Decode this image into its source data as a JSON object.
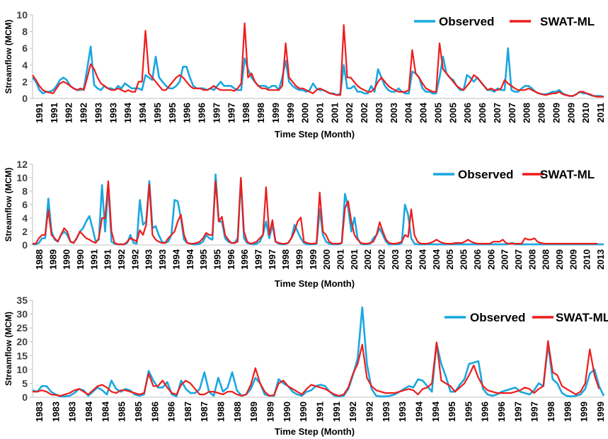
{
  "chart_data": [
    {
      "type": "line",
      "xlabel": "Time Step (Month)",
      "ylabel": "Streamflow (MCM)",
      "ylim": [
        0,
        10
      ],
      "yticks": [
        0,
        2,
        4,
        6,
        8,
        10
      ],
      "grid": false,
      "legend_position": "top-right",
      "x_tick_labels": [
        "1991",
        "1991",
        "1992",
        "1992",
        "1993",
        "1993",
        "1994",
        "1994",
        "1995",
        "1995",
        "1996",
        "1996",
        "1997",
        "1997",
        "1998",
        "1998",
        "1999",
        "1999",
        "2000",
        "2001",
        "2001",
        "2002",
        "2002",
        "2003",
        "2003",
        "2004",
        "2004",
        "2005",
        "2005",
        "2006",
        "2006",
        "2007",
        "2007",
        "2008",
        "2008",
        "2009",
        "2009",
        "2010",
        "2011"
      ],
      "series": [
        {
          "name": "Observed",
          "color": "#1aa7e0",
          "values": [
            2.5,
            2.0,
            1.0,
            0.6,
            0.8,
            0.8,
            1.0,
            1.5,
            2.2,
            2.5,
            2.2,
            1.5,
            1.2,
            1.0,
            1.0,
            1.2,
            3.6,
            6.2,
            1.6,
            1.2,
            1.0,
            1.5,
            1.2,
            1.2,
            1.0,
            1.5,
            1.2,
            1.8,
            1.5,
            1.2,
            1.2,
            1.2,
            1.0,
            2.8,
            2.5,
            2.2,
            5.0,
            2.5,
            2.0,
            1.5,
            1.2,
            1.2,
            1.5,
            2.0,
            3.8,
            3.8,
            2.5,
            1.5,
            1.2,
            1.2,
            1.2,
            1.0,
            1.2,
            1.0,
            1.5,
            2.0,
            1.5,
            1.5,
            1.5,
            1.2,
            1.0,
            1.0,
            4.8,
            3.5,
            2.5,
            2.0,
            1.5,
            1.5,
            1.5,
            1.2,
            1.5,
            1.5,
            1.0,
            2.5,
            4.5,
            2.0,
            1.5,
            1.2,
            1.0,
            1.0,
            0.8,
            1.0,
            1.8,
            1.2,
            1.0,
            1.0,
            0.8,
            0.6,
            0.6,
            0.4,
            0.6,
            4.0,
            1.2,
            1.2,
            1.5,
            0.8,
            0.8,
            0.6,
            0.6,
            1.5,
            0.8,
            3.5,
            2.5,
            1.5,
            1.0,
            0.8,
            0.8,
            1.2,
            0.8,
            0.6,
            0.6,
            3.2,
            3.0,
            2.5,
            1.2,
            0.8,
            0.8,
            0.6,
            0.6,
            2.5,
            5.0,
            3.0,
            2.5,
            2.2,
            1.5,
            1.0,
            1.0,
            2.8,
            2.5,
            2.0,
            2.5,
            2.0,
            1.5,
            1.0,
            1.0,
            0.8,
            1.2,
            1.0,
            1.0,
            6.0,
            1.0,
            0.8,
            0.8,
            1.2,
            1.5,
            1.5,
            1.2,
            0.8,
            0.6,
            0.5,
            0.5,
            0.6,
            0.8,
            0.8,
            1.0,
            0.6,
            0.4,
            0.3,
            0.3,
            0.5,
            0.8,
            0.6,
            0.6,
            0.4,
            0.3,
            0.3,
            0.3,
            0.2
          ]
        },
        {
          "name": "SWAT-ML",
          "color": "#ee1c1c",
          "values": [
            2.8,
            2.2,
            1.5,
            1.0,
            0.8,
            0.7,
            0.6,
            1.2,
            1.8,
            2.0,
            1.8,
            1.5,
            1.2,
            1.0,
            1.2,
            1.0,
            2.5,
            4.1,
            3.5,
            2.5,
            1.8,
            1.5,
            1.2,
            1.0,
            1.0,
            1.2,
            1.0,
            0.8,
            1.0,
            0.8,
            0.8,
            2.0,
            2.0,
            8.1,
            3.0,
            2.5,
            2.0,
            1.5,
            1.0,
            1.0,
            1.5,
            2.0,
            2.5,
            2.8,
            2.5,
            2.0,
            1.5,
            1.2,
            1.2,
            1.2,
            1.0,
            1.0,
            1.2,
            1.5,
            1.2,
            1.0,
            1.0,
            1.0,
            1.0,
            0.9,
            1.2,
            1.8,
            9.0,
            2.5,
            3.0,
            2.0,
            1.5,
            1.2,
            1.2,
            1.0,
            1.0,
            1.0,
            1.0,
            1.5,
            6.6,
            2.5,
            2.0,
            1.5,
            1.2,
            1.2,
            1.0,
            0.8,
            0.6,
            1.0,
            1.2,
            1.0,
            0.8,
            0.6,
            0.5,
            0.4,
            0.4,
            8.8,
            2.5,
            2.5,
            2.0,
            1.5,
            1.2,
            1.0,
            0.8,
            0.8,
            1.2,
            2.0,
            2.5,
            2.0,
            1.5,
            1.2,
            1.0,
            0.8,
            0.8,
            0.8,
            1.0,
            5.8,
            3.0,
            2.5,
            1.8,
            1.2,
            1.0,
            0.8,
            0.8,
            6.6,
            3.5,
            3.0,
            2.5,
            2.0,
            1.5,
            1.2,
            1.0,
            1.5,
            2.0,
            2.8,
            2.5,
            2.0,
            1.5,
            1.0,
            1.2,
            1.0,
            1.0,
            1.2,
            2.2,
            1.8,
            1.5,
            1.2,
            1.0,
            1.0,
            1.0,
            1.2,
            1.0,
            0.8,
            0.6,
            0.5,
            0.4,
            0.5,
            0.6,
            0.6,
            0.8,
            0.5,
            0.4,
            0.3,
            0.3,
            0.5,
            0.8,
            0.8,
            0.6,
            0.5,
            0.3,
            0.2,
            0.2,
            0.2
          ]
        }
      ]
    },
    {
      "type": "line",
      "xlabel": "Time Step (Month)",
      "ylabel": "Streamflow (MCM)",
      "ylim": [
        0,
        12
      ],
      "yticks": [
        0,
        2,
        4,
        6,
        8,
        10,
        12
      ],
      "grid": false,
      "legend_position": "top-right",
      "x_tick_labels": [
        "1988",
        "1989",
        "1990",
        "1990",
        "1991",
        "1991",
        "1992",
        "1992",
        "1993",
        "1993",
        "1994",
        "1994",
        "1995",
        "1995",
        "1996",
        "1996",
        "1997",
        "1997",
        "1998",
        "1999",
        "1999",
        "2000",
        "2001",
        "2001",
        "2002",
        "2002",
        "2003",
        "2003",
        "2004",
        "2004",
        "2005",
        "2005",
        "2006",
        "2006",
        "2007",
        "2007",
        "2008",
        "2008",
        "2009",
        "2009",
        "2010",
        "2013"
      ],
      "series": [
        {
          "name": "Observed",
          "color": "#1aa7e0",
          "values": [
            0.1,
            0.1,
            0.3,
            1.0,
            1.0,
            6.9,
            2.0,
            0.8,
            0.5,
            1.5,
            2.0,
            1.5,
            0.5,
            0.3,
            1.0,
            2.0,
            2.5,
            3.5,
            4.3,
            2.5,
            0.5,
            0.8,
            8.9,
            2.0,
            8.9,
            0.5,
            0.2,
            0.1,
            0.1,
            0.1,
            0.3,
            1.5,
            0.3,
            0.2,
            6.7,
            3.0,
            3.5,
            9.5,
            2.5,
            2.8,
            1.5,
            0.5,
            0.3,
            0.5,
            1.5,
            6.7,
            6.5,
            4.0,
            0.8,
            0.3,
            0.2,
            0.1,
            0.1,
            0.2,
            0.5,
            1.5,
            1.0,
            0.8,
            10.5,
            3.5,
            3.5,
            1.0,
            0.5,
            0.3,
            0.3,
            1.0,
            9.8,
            1.0,
            0.3,
            0.2,
            0.1,
            0.2,
            0.5,
            1.5,
            3.5,
            1.0,
            3.0,
            0.5,
            0.2,
            0.1,
            0.1,
            0.3,
            1.0,
            3.0,
            2.0,
            1.0,
            0.3,
            0.1,
            0.1,
            0.1,
            0.2,
            5.3,
            1.5,
            0.5,
            0.2,
            0.1,
            0.1,
            0.1,
            0.3,
            7.6,
            5.5,
            2.0,
            4.1,
            1.0,
            0.2,
            0.1,
            0.1,
            0.2,
            1.0,
            1.5,
            2.5,
            1.5,
            0.5,
            0.1,
            0.1,
            0.1,
            0.1,
            0.3,
            6.0,
            4.5,
            1.0,
            0.2,
            0.1,
            0.1,
            0.1,
            0.1,
            0.1,
            0.1,
            0.1,
            0.1,
            0.1,
            0.1,
            0.1,
            0.1,
            0.1,
            0.1,
            0.1,
            0.1,
            0.1,
            0.1,
            0.1,
            0.1,
            0.1,
            0.1,
            0.1,
            0.1,
            0.1,
            0.1,
            0.1,
            0.1,
            0.1,
            0.2,
            0.3,
            0.1,
            0.1,
            0.1,
            0.1,
            0.1,
            0.1,
            0.1,
            0.1,
            0.1,
            0.1,
            0.1,
            0.1,
            0.1,
            0.1,
            0.1,
            0.1,
            0.1,
            0.1,
            0.1,
            0.1,
            0.1,
            0.1,
            0.1,
            0.1,
            0.1,
            0.1,
            0.1,
            0.1,
            0.1
          ]
        },
        {
          "name": "SWAT-ML",
          "color": "#ee1c1c",
          "values": [
            0.2,
            0.2,
            1.0,
            1.5,
            1.5,
            5.2,
            1.5,
            1.0,
            0.5,
            1.5,
            2.5,
            2.0,
            0.5,
            0.3,
            1.0,
            2.0,
            1.5,
            1.0,
            0.8,
            0.5,
            0.3,
            1.0,
            4.0,
            4.0,
            9.5,
            2.0,
            0.3,
            0.1,
            0.1,
            0.1,
            0.5,
            1.0,
            0.8,
            0.5,
            2.2,
            1.5,
            3.0,
            9.0,
            1.5,
            0.8,
            0.5,
            0.3,
            0.3,
            1.0,
            1.5,
            2.0,
            3.5,
            4.5,
            1.5,
            0.3,
            0.2,
            0.2,
            0.3,
            0.5,
            1.0,
            1.8,
            1.5,
            1.5,
            9.5,
            3.5,
            4.2,
            1.5,
            0.8,
            0.3,
            0.3,
            0.5,
            10.0,
            2.0,
            0.5,
            0.2,
            0.3,
            0.5,
            1.0,
            1.5,
            8.6,
            1.5,
            3.7,
            0.5,
            0.3,
            0.2,
            0.2,
            0.3,
            1.0,
            2.0,
            3.5,
            4.1,
            0.5,
            0.3,
            0.2,
            0.2,
            0.3,
            7.8,
            2.0,
            1.5,
            0.5,
            0.2,
            0.2,
            0.2,
            0.3,
            5.5,
            6.5,
            3.5,
            1.5,
            0.8,
            0.3,
            0.2,
            0.2,
            0.3,
            0.5,
            1.5,
            3.4,
            2.0,
            0.8,
            0.3,
            0.2,
            0.2,
            0.3,
            0.5,
            1.5,
            1.2,
            5.3,
            1.5,
            0.5,
            0.2,
            0.2,
            0.2,
            0.3,
            0.5,
            0.8,
            0.5,
            0.3,
            0.2,
            0.2,
            0.2,
            0.3,
            0.3,
            0.3,
            0.5,
            0.8,
            0.5,
            0.3,
            0.2,
            0.2,
            0.2,
            0.2,
            0.2,
            0.5,
            0.5,
            0.5,
            0.8,
            0.3,
            0.2,
            0.2,
            0.2,
            0.2,
            0.2,
            1.0,
            0.8,
            0.8,
            1.0,
            0.5,
            0.3,
            0.2,
            0.2,
            0.2,
            0.2,
            0.2,
            0.2,
            0.2,
            0.2,
            0.2,
            0.2,
            0.2,
            0.2,
            0.2,
            0.2,
            0.2,
            0.2,
            0.2,
            0.2
          ]
        }
      ]
    },
    {
      "type": "line",
      "xlabel": "Time Step (Month)",
      "ylabel": "Streamflow (MCM)",
      "ylim": [
        0,
        35
      ],
      "yticks": [
        0,
        5,
        10,
        15,
        20,
        25,
        30,
        35
      ],
      "grid": false,
      "legend_position": "top-right",
      "x_tick_labels": [
        "1983",
        "1983",
        "1983",
        "1984",
        "1984",
        "1985",
        "1985",
        "1986",
        "1986",
        "1987",
        "1987",
        "1988",
        "1988",
        "1989",
        "1989",
        "1990",
        "1990",
        "1991",
        "1991",
        "1992",
        "1992",
        "1993",
        "1993",
        "1994",
        "1994",
        "1995",
        "1995",
        "1996",
        "1996",
        "1997",
        "1997",
        "1998",
        "1998",
        "1999",
        "1999"
      ],
      "series": [
        {
          "name": "Observed",
          "color": "#1aa7e0",
          "values": [
            2.5,
            2.0,
            4.0,
            4.0,
            2.0,
            1.0,
            0.3,
            0.3,
            0.5,
            1.5,
            3.0,
            2.5,
            0.5,
            2.0,
            3.5,
            2.5,
            1.0,
            6.0,
            3.0,
            2.0,
            3.0,
            2.5,
            1.0,
            0.5,
            1.0,
            9.5,
            6.0,
            3.5,
            3.5,
            5.5,
            1.0,
            0.3,
            6.0,
            3.0,
            1.5,
            1.5,
            3.0,
            9.0,
            2.0,
            0.5,
            7.0,
            2.0,
            3.5,
            9.0,
            2.5,
            0.5,
            1.0,
            3.0,
            7.0,
            5.0,
            1.0,
            0.5,
            0.5,
            6.5,
            5.0,
            4.0,
            2.0,
            1.0,
            0.5,
            2.0,
            2.5,
            4.0,
            4.5,
            4.0,
            2.0,
            0.5,
            0.3,
            0.5,
            3.0,
            8.0,
            14.0,
            32.4,
            12.0,
            3.0,
            0.5,
            0.3,
            0.3,
            0.5,
            1.0,
            2.0,
            3.0,
            4.0,
            3.5,
            6.5,
            6.0,
            4.0,
            2.0,
            19.5,
            12.0,
            7.5,
            2.0,
            2.0,
            4.5,
            6.5,
            12.0,
            12.5,
            13.0,
            3.0,
            1.0,
            0.5,
            1.0,
            2.0,
            2.5,
            3.0,
            3.5,
            2.0,
            1.5,
            1.0,
            2.5,
            5.0,
            4.0,
            19.0,
            6.5,
            5.0,
            1.5,
            0.5,
            0.3,
            0.5,
            1.0,
            3.0,
            8.5,
            10.0,
            4.0,
            0.5
          ]
        },
        {
          "name": "SWAT-ML",
          "color": "#ee1c1c",
          "values": [
            2.0,
            2.0,
            2.5,
            2.0,
            1.0,
            0.8,
            0.5,
            1.0,
            1.5,
            2.5,
            3.0,
            2.0,
            1.0,
            2.5,
            4.0,
            4.5,
            3.5,
            2.0,
            1.5,
            2.5,
            2.5,
            2.0,
            1.5,
            1.0,
            1.5,
            8.5,
            4.0,
            4.0,
            6.0,
            3.5,
            1.5,
            1.0,
            4.5,
            6.0,
            5.0,
            3.0,
            1.0,
            1.0,
            2.0,
            2.0,
            1.5,
            1.0,
            2.0,
            2.0,
            1.0,
            0.5,
            1.0,
            4.5,
            10.5,
            5.0,
            2.0,
            0.5,
            0.8,
            5.0,
            6.0,
            4.0,
            3.0,
            2.0,
            1.0,
            3.0,
            4.5,
            4.0,
            3.5,
            3.0,
            2.0,
            1.0,
            0.5,
            1.0,
            3.5,
            8.5,
            12.0,
            19.0,
            7.0,
            4.0,
            2.5,
            2.0,
            1.5,
            1.5,
            1.5,
            2.0,
            2.5,
            3.0,
            2.5,
            1.0,
            3.0,
            3.5,
            5.0,
            19.8,
            6.0,
            5.0,
            4.0,
            2.0,
            3.5,
            5.0,
            8.0,
            11.5,
            7.0,
            4.0,
            2.5,
            2.0,
            1.5,
            1.5,
            1.5,
            1.5,
            2.0,
            2.5,
            3.5,
            3.0,
            1.5,
            3.0,
            4.0,
            20.3,
            9.0,
            8.0,
            4.0,
            3.0,
            2.0,
            1.0,
            2.0,
            5.0,
            17.3,
            8.0,
            3.0
          ]
        }
      ]
    }
  ]
}
